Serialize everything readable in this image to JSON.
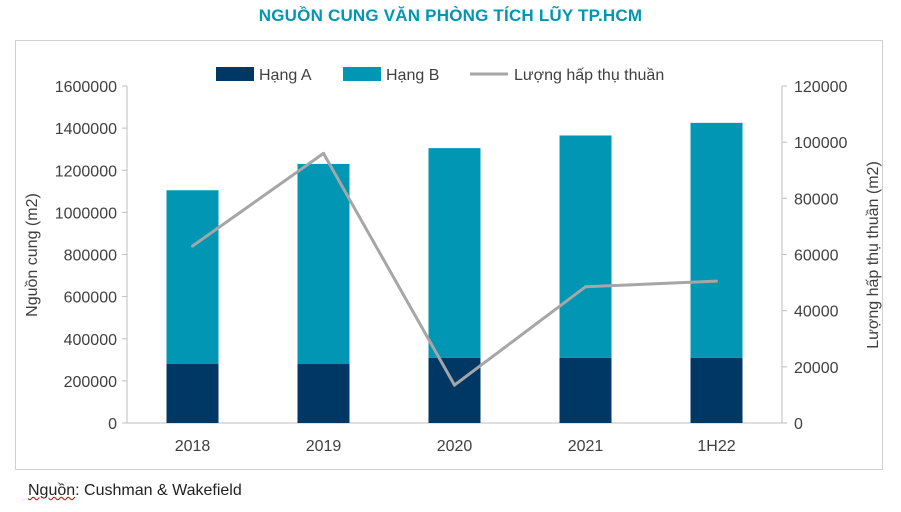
{
  "title": "NGUỒN CUNG VĂN PHÒNG TÍCH LŨY TP.HCM",
  "source": {
    "prefix": "Nguồn",
    "text": ": Cushman & Wakefield"
  },
  "colors": {
    "hang_a": "#003865",
    "hang_b": "#0096b4",
    "absorption": "#a6a6a6",
    "title": "#0096b4"
  },
  "chart_data": {
    "type": "bar",
    "stacked": true,
    "categories": [
      "2018",
      "2019",
      "2020",
      "2021",
      "1H22"
    ],
    "series": [
      {
        "name": "Hạng A",
        "axis": "left",
        "type": "bar",
        "values": [
          280000,
          280000,
          310000,
          310000,
          310000
        ]
      },
      {
        "name": "Hạng B",
        "axis": "left",
        "type": "bar",
        "values": [
          825000,
          950000,
          995000,
          1055000,
          1115000
        ]
      },
      {
        "name": "Lượng hấp thụ thuần",
        "axis": "right",
        "type": "line",
        "values": [
          63000,
          96000,
          13500,
          48500,
          50500
        ]
      }
    ],
    "ylabel": "Nguồn cung (m2)",
    "y2label": "Lượng hấp thụ thuần (m2)",
    "ylim": [
      0,
      1600000
    ],
    "y2lim": [
      0,
      120000
    ],
    "yticks": [
      "0",
      "200000",
      "400000",
      "600000",
      "800000",
      "1000000",
      "1200000",
      "1400000",
      "1600000"
    ],
    "y2ticks": [
      "0",
      "20000",
      "40000",
      "60000",
      "80000",
      "100000",
      "120000"
    ],
    "grid": false,
    "legend": "top"
  }
}
